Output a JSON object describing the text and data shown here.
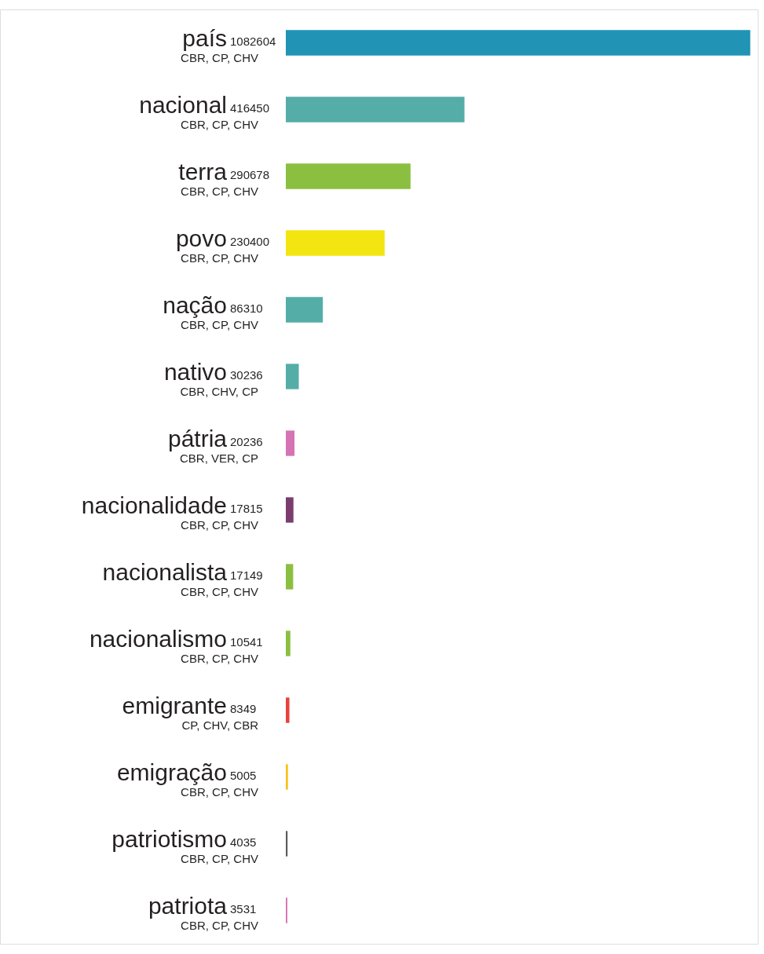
{
  "chart_data": {
    "type": "bar",
    "orientation": "horizontal",
    "categories": [
      "país",
      "nacional",
      "terra",
      "povo",
      "nação",
      "nativo",
      "pátria",
      "nacionalidade",
      "nacionalista",
      "nacionalismo",
      "emigrante",
      "emigração",
      "patriotismo",
      "patriota"
    ],
    "values": [
      1082604,
      416450,
      290678,
      230400,
      86310,
      30236,
      20236,
      17815,
      17149,
      10541,
      8349,
      5005,
      4035,
      3531
    ],
    "colors": [
      "#2193b5",
      "#55ada8",
      "#8bbf40",
      "#f3e50f",
      "#55ada8",
      "#55ada8",
      "#d673b4",
      "#7a3d6e",
      "#8bbf40",
      "#8bbf40",
      "#e8423d",
      "#f9c11a",
      "#5b5b5b",
      "#d673b4"
    ],
    "xlim": [
      0,
      1100000
    ],
    "data_labels": true,
    "annotations": [
      "CBR, CP, CHV",
      "CBR, CP, CHV",
      "CBR, CP, CHV",
      "CBR, CP, CHV",
      "CBR, CP, CHV",
      "CBR, CHV, CP",
      "CBR, VER, CP",
      "CBR, CP, CHV",
      "CBR, CP, CHV",
      "CBR, CP, CHV",
      "CP, CHV, CBR",
      "CBR, CP, CHV",
      "CBR, CP, CHV",
      "CBR, CP, CHV"
    ]
  }
}
